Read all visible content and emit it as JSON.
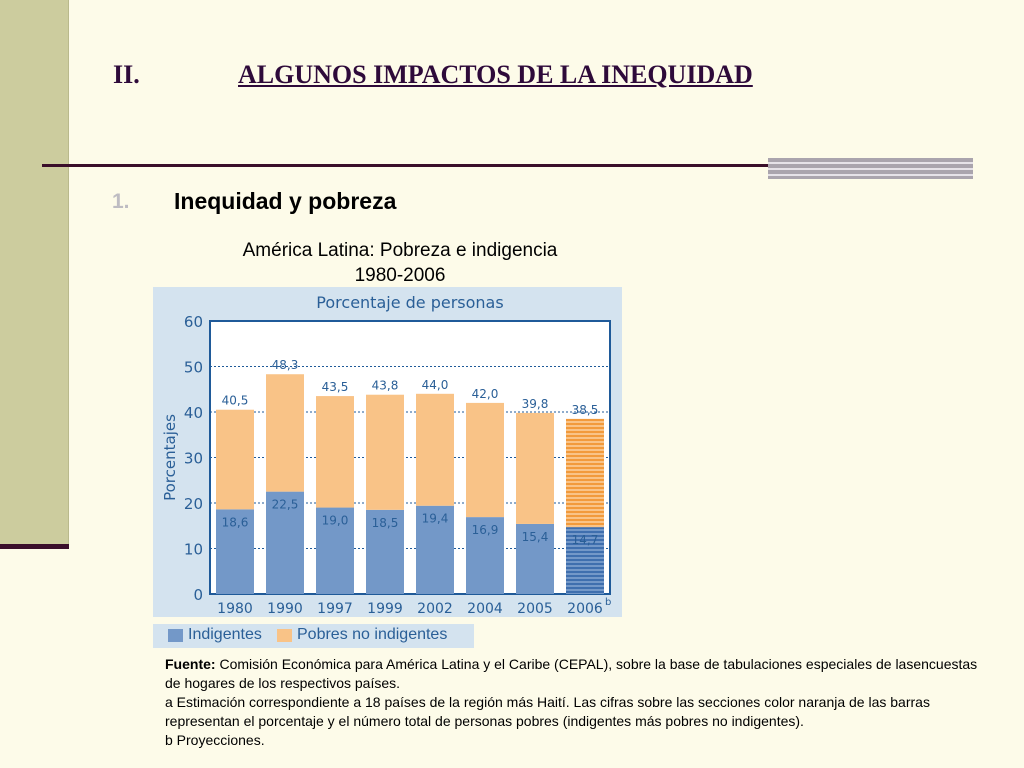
{
  "heading": {
    "number": "II.",
    "title": "ALGUNOS IMPACTOS DE LA INEQUIDAD"
  },
  "subheading": {
    "number": "1.",
    "title": "Inequidad y pobreza"
  },
  "chart_title": {
    "line1": "América Latina: Pobreza e indigencia",
    "line2": "1980-2006"
  },
  "legend": [
    {
      "label": "Indigentes",
      "color": "#7398c8"
    },
    {
      "label": "Pobres no indigentes",
      "color": "#f9c387"
    }
  ],
  "source": {
    "label": "Fuente:",
    "text": "Comisión Económica para América Latina y el Caribe (CEPAL), sobre la base de tabulaciones especiales de lasencuestas de hogares de los respectivos países.",
    "note_a": "a Estimación correspondiente a 18 países de la región más Haití. Las cifras sobre las secciones color naranja de las barras representan el porcentaje y el número total de personas pobres (indigentes más pobres no indigentes).",
    "note_b": "b Proyecciones."
  },
  "chart_data": {
    "type": "bar",
    "stacked": true,
    "title": "Porcentaje de personas",
    "ylabel": "Porcentajes",
    "xlabel": "",
    "ylim": [
      0,
      60
    ],
    "yticks": [
      0,
      10,
      20,
      30,
      40,
      50,
      60
    ],
    "grid": true,
    "categories": [
      "1980",
      "1990",
      "1997",
      "1999",
      "2002",
      "2004",
      "2005",
      "2006"
    ],
    "category_superscripts": [
      "",
      "",
      "",
      "",
      "",
      "",
      "",
      "b"
    ],
    "series": [
      {
        "name": "Indigentes",
        "values": [
          18.6,
          22.5,
          19.0,
          18.5,
          19.4,
          16.9,
          15.4,
          14.7
        ],
        "color": "#7398c8",
        "color_dark": "#3f6fae"
      },
      {
        "name": "Pobres no indigentes",
        "values": [
          21.9,
          25.8,
          24.5,
          25.3,
          24.6,
          25.1,
          24.4,
          23.8
        ],
        "color": "#f9c387",
        "color_dark": "#f29a3b"
      }
    ],
    "total_labels": [
      "40,5",
      "48,3",
      "43,5",
      "43,8",
      "44,0",
      "42,0",
      "39,8",
      "38,5"
    ],
    "indigent_labels": [
      "18,6",
      "22,5",
      "19,0",
      "18,5",
      "19,4",
      "16,9",
      "15,4",
      "14,7"
    ],
    "projected": [
      false,
      false,
      false,
      false,
      false,
      false,
      false,
      true
    ],
    "label_color": "#2a5f97"
  }
}
